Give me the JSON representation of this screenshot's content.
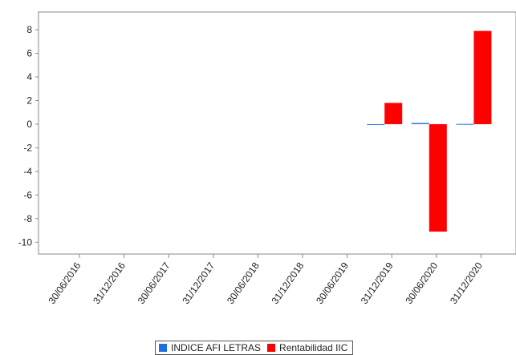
{
  "chart_data": {
    "type": "bar",
    "categories": [
      "30/06/2016",
      "31/12/2016",
      "30/06/2017",
      "31/12/2017",
      "30/06/2018",
      "31/12/2018",
      "30/06/2019",
      "31/12/2019",
      "30/06/2020",
      "31/12/2020"
    ],
    "series": [
      {
        "name": "INDICE AFI LETRAS",
        "color": "#1f6fe0",
        "values": [
          null,
          null,
          null,
          null,
          null,
          null,
          null,
          -0.05,
          0.1,
          0.02
        ]
      },
      {
        "name": "Rentabilidad IIC",
        "color": "#ff0000",
        "values": [
          null,
          null,
          null,
          null,
          null,
          null,
          null,
          1.8,
          -9.1,
          7.9
        ]
      }
    ],
    "ylim": [
      -11,
      9.5
    ],
    "yticks": [
      -10,
      -8,
      -6,
      -4,
      -2,
      0,
      2,
      4,
      6,
      8
    ],
    "title": "",
    "xlabel": "",
    "ylabel": "",
    "grid": false,
    "legend_position": "bottom"
  }
}
